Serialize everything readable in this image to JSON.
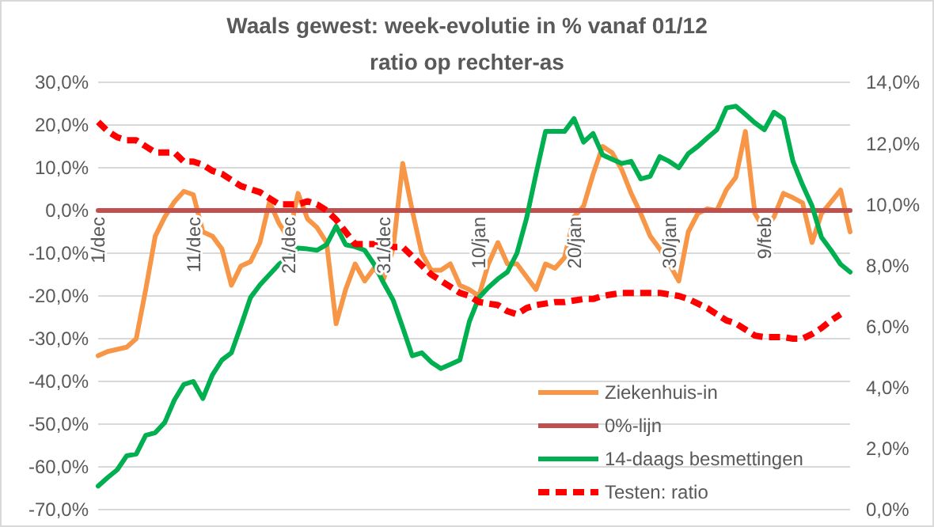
{
  "chart_data": {
    "type": "line",
    "title": "Waals gewest: week-evolutie in % vanaf 01/12",
    "subtitle": "ratio op rechter-as",
    "categories": [
      "1/dec",
      null,
      null,
      null,
      null,
      null,
      null,
      null,
      null,
      null,
      "11/dec",
      null,
      null,
      null,
      null,
      null,
      null,
      null,
      null,
      null,
      "21/dec",
      null,
      null,
      null,
      null,
      null,
      null,
      null,
      null,
      null,
      "31/dec",
      null,
      null,
      null,
      null,
      null,
      null,
      null,
      null,
      null,
      "10/jan",
      null,
      null,
      null,
      null,
      null,
      null,
      null,
      null,
      null,
      "20/jan",
      null,
      null,
      null,
      null,
      null,
      null,
      null,
      null,
      null,
      "30/jan",
      null,
      null,
      null,
      null,
      null,
      null,
      null,
      null,
      null,
      "9/feb",
      null,
      null,
      null,
      null,
      null,
      null,
      null,
      null,
      null
    ],
    "ylim": [
      -70,
      30
    ],
    "yticks": [
      {
        "value": -70,
        "label": "-70,0%"
      },
      {
        "value": -60,
        "label": "-60,0%"
      },
      {
        "value": -50,
        "label": "-50,0%"
      },
      {
        "value": -40,
        "label": "-40,0%"
      },
      {
        "value": -30,
        "label": "-30,0%"
      },
      {
        "value": -20,
        "label": "-20,0%"
      },
      {
        "value": -10,
        "label": "-10,0%"
      },
      {
        "value": 0,
        "label": "0,0%"
      },
      {
        "value": 10,
        "label": "10,0%"
      },
      {
        "value": 20,
        "label": "20,0%"
      },
      {
        "value": 30,
        "label": "30,0%"
      }
    ],
    "y2lim": [
      0,
      14
    ],
    "y2ticks": [
      {
        "value": 0,
        "label": "0,0%"
      },
      {
        "value": 2,
        "label": "2,0%"
      },
      {
        "value": 4,
        "label": "4,0%"
      },
      {
        "value": 6,
        "label": "6,0%"
      },
      {
        "value": 8,
        "label": "8,0%"
      },
      {
        "value": 10,
        "label": "10,0%"
      },
      {
        "value": 12,
        "label": "12,0%"
      },
      {
        "value": 14,
        "label": "14,0%"
      }
    ],
    "grid": "y",
    "legend": "bottom right",
    "marker": "none",
    "series": [
      {
        "name": "Ziekenhuis-in",
        "color": "#f79646",
        "line_style": "solid",
        "values": [
          -34,
          -33,
          -32.5,
          -32,
          -30,
          -18.5,
          -6,
          -1.5,
          2,
          4.5,
          3.7,
          -5,
          -6,
          -9,
          -17.5,
          -13,
          -12,
          -7.5,
          2,
          -3,
          -6.5,
          4,
          -2,
          -4,
          -7.5,
          -26.5,
          -18.5,
          -12.5,
          -16.5,
          -13.5,
          -16,
          -8.8,
          11,
          0,
          -10,
          -14,
          -14,
          -12.5,
          -17.5,
          -18.5,
          -20,
          -12.5,
          -7.5,
          -12.5,
          -12.5,
          -15.5,
          -18.5,
          -12.5,
          -13.5,
          -11,
          -1.5,
          1,
          8.5,
          15,
          13.5,
          9.6,
          4,
          -0.7,
          -6,
          -9,
          -12.5,
          -16.5,
          -5,
          -0.7,
          0.4,
          0,
          4.8,
          7.8,
          18.5,
          -0.7,
          -4.5,
          -1.5,
          4,
          3,
          1.8,
          -7.5,
          -0.7,
          2,
          4.8,
          -5
        ]
      },
      {
        "name": "0%-lijn",
        "color": "#c0504d",
        "line_style": "solid",
        "values": [
          0,
          0,
          0,
          0,
          0,
          0,
          0,
          0,
          0,
          0,
          0,
          0,
          0,
          0,
          0,
          0,
          0,
          0,
          0,
          0,
          0,
          0,
          0,
          0,
          0,
          0,
          0,
          0,
          0,
          0,
          0,
          0,
          0,
          0,
          0,
          0,
          0,
          0,
          0,
          0,
          0,
          0,
          0,
          0,
          0,
          0,
          0,
          0,
          0,
          0,
          0,
          0,
          0,
          0,
          0,
          0,
          0,
          0,
          0,
          0,
          0,
          0,
          0,
          0,
          0,
          0,
          0,
          0,
          0,
          0,
          0,
          0,
          0,
          0,
          0,
          0,
          0,
          0,
          0,
          0
        ]
      },
      {
        "name": "14-daags besmettingen",
        "color": "#00b050",
        "line_style": "solid",
        "values": [
          -64.5,
          -62.5,
          -60.7,
          -57.4,
          -57,
          -52.6,
          -52,
          -49.6,
          -44.4,
          -40.7,
          -40,
          -44,
          -38.5,
          -35,
          -33.3,
          -27,
          -20.4,
          -17.4,
          -15,
          -12.6,
          -11,
          -8.8,
          -9,
          -9.3,
          -8,
          -3.7,
          -8,
          -8.5,
          -9.3,
          -12.6,
          -17,
          -21,
          -27.4,
          -34,
          -33.3,
          -35.5,
          -37,
          -36,
          -35,
          -26,
          -20.4,
          -18,
          -16,
          -14.4,
          -10,
          -1.9,
          8.5,
          18.5,
          18.5,
          18.5,
          21.5,
          16,
          18,
          13,
          12,
          11,
          11.5,
          7.4,
          8,
          12.6,
          11.5,
          10,
          13.3,
          15,
          17,
          18.9,
          24,
          24.4,
          22.5,
          20.5,
          18.9,
          23,
          21.5,
          11.5,
          6,
          1.1,
          -6.3,
          -9.3,
          -12.6,
          -14.4
        ]
      },
      {
        "name": "Testen: ratio",
        "color": "#ff0000",
        "line_style": "dashed",
        "axis": "y2",
        "values": [
          12.7,
          12.4,
          12.2,
          12.1,
          12.1,
          11.9,
          11.7,
          11.7,
          11.7,
          11.4,
          11.4,
          11.3,
          11.1,
          11,
          10.8,
          10.6,
          10.5,
          10.4,
          10.2,
          10,
          10,
          10,
          10.1,
          10,
          9.8,
          9.5,
          9.1,
          8.7,
          8.7,
          8.7,
          8.65,
          8.6,
          8.6,
          8.3,
          8,
          7.7,
          7.5,
          7.3,
          7.1,
          7,
          6.8,
          6.75,
          6.7,
          6.5,
          6.4,
          6.6,
          6.7,
          6.75,
          6.8,
          6.8,
          6.85,
          6.9,
          6.9,
          7,
          7.05,
          7.1,
          7.1,
          7.1,
          7.1,
          7.1,
          7.05,
          7,
          6.9,
          6.75,
          6.6,
          6.4,
          6.2,
          6.1,
          5.9,
          5.7,
          5.65,
          5.65,
          5.65,
          5.6,
          5.6,
          5.75,
          5.95,
          6.2,
          6.4,
          null
        ]
      }
    ]
  }
}
